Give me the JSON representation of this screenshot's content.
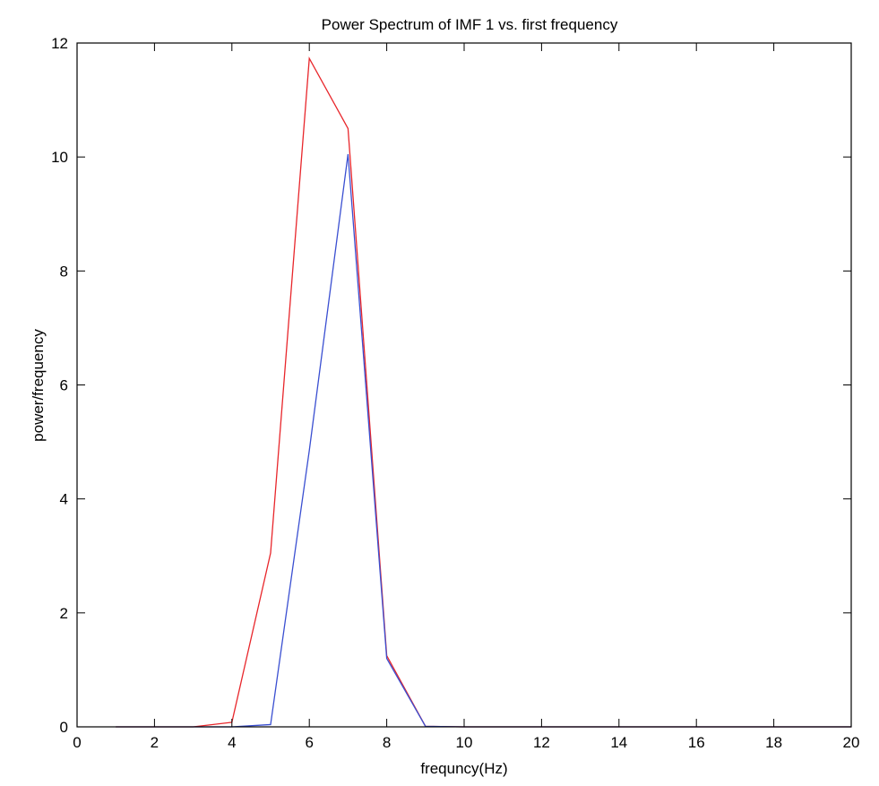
{
  "chart_data": {
    "type": "line",
    "title": "Power Spectrum of IMF 1 vs. first frequency",
    "xlabel": "frequncy(Hz)",
    "ylabel": "power/frequency",
    "xlim": [
      0,
      20
    ],
    "ylim": [
      0,
      12
    ],
    "xticks": [
      0,
      2,
      4,
      6,
      8,
      10,
      12,
      14,
      16,
      18,
      20
    ],
    "yticks": [
      0,
      2,
      4,
      6,
      8,
      10,
      12
    ],
    "xtick_labels": [
      "0",
      "2",
      "4",
      "6",
      "8",
      "10",
      "12",
      "14",
      "16",
      "18",
      "20"
    ],
    "ytick_labels": [
      "0",
      "2",
      "4",
      "6",
      "8",
      "10",
      "12"
    ],
    "grid": false,
    "legend": "none",
    "series": [
      {
        "color": "#e8262b",
        "x": [
          1,
          2,
          3,
          4,
          5,
          6,
          7,
          8,
          9,
          10,
          11,
          12,
          13,
          14,
          15,
          16,
          17,
          18,
          19,
          20
        ],
        "y": [
          0,
          0,
          0,
          0.08,
          3.05,
          11.73,
          10.5,
          1.25,
          0.01,
          0,
          0,
          0,
          0,
          0,
          0,
          0,
          0,
          0,
          0,
          0
        ]
      },
      {
        "color": "#3a4fd1",
        "x": [
          1,
          2,
          3,
          4,
          5,
          6,
          7,
          8,
          9,
          10,
          11,
          12,
          13,
          14,
          15,
          16,
          17,
          18,
          19,
          20
        ],
        "y": [
          0,
          0,
          0,
          0,
          0.04,
          4.85,
          10.05,
          1.2,
          0.01,
          0,
          0,
          0,
          0,
          0,
          0,
          0,
          0,
          0,
          0,
          0
        ]
      }
    ]
  }
}
